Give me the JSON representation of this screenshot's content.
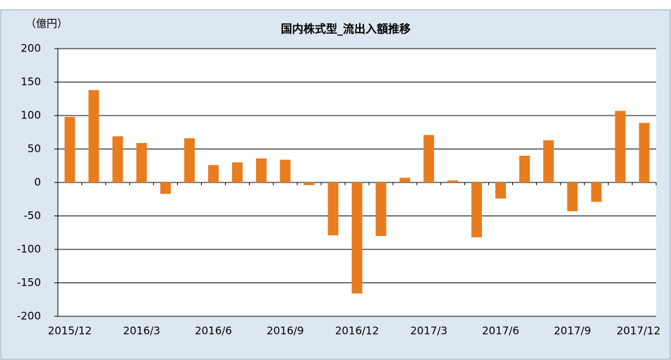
{
  "chart_data": {
    "type": "bar",
    "title": "国内株式型_流出入額推移",
    "y_label": "（億円）",
    "categories": [
      "2015/12",
      null,
      null,
      "2016/3",
      null,
      null,
      "2016/6",
      null,
      null,
      "2016/9",
      null,
      null,
      "2016/12",
      null,
      null,
      "2017/3",
      null,
      null,
      "2017/6",
      null,
      null,
      "2017/9",
      null,
      null,
      "2017/12"
    ],
    "values": [
      98,
      138,
      69,
      59,
      -17,
      66,
      26,
      30,
      36,
      34,
      -4,
      -79,
      -166,
      -80,
      7,
      71,
      3,
      -82,
      -24,
      40,
      63,
      -43,
      -29,
      107,
      89
    ],
    "color": "#e87c1e",
    "negative_tick_color": "#ff0000",
    "ylim": [
      -200,
      200
    ],
    "yticks": [
      -200,
      -150,
      -100,
      -50,
      0,
      50,
      100,
      150,
      200
    ],
    "grid": true
  }
}
